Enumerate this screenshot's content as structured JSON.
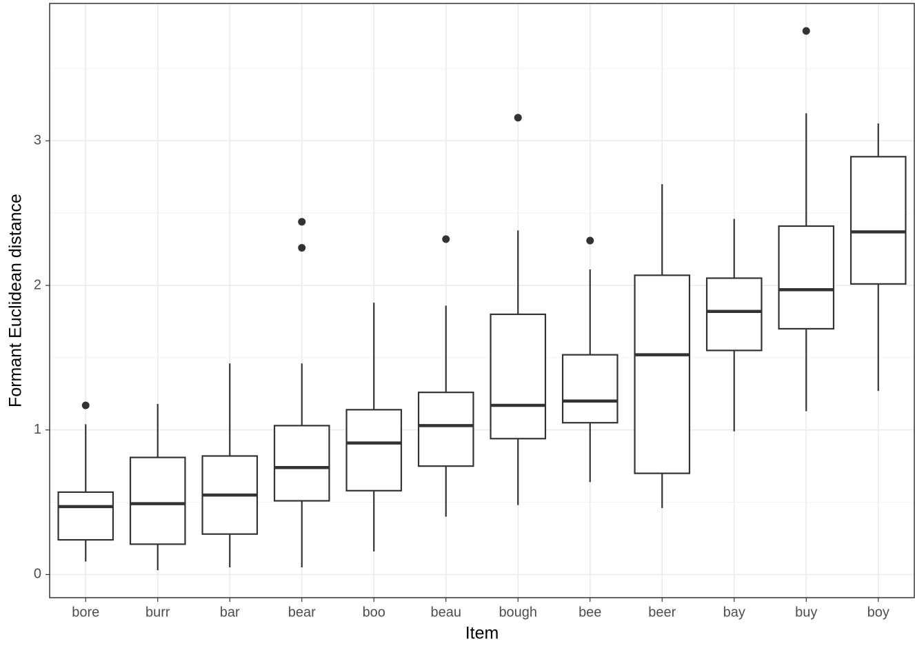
{
  "chart_data": {
    "type": "boxplot",
    "x_label": "Item",
    "y_label": "Formant Euclidean distance",
    "categories": [
      "bore",
      "burr",
      "bar",
      "bear",
      "boo",
      "beau",
      "bough",
      "bee",
      "beer",
      "bay",
      "buy",
      "boy"
    ],
    "boxes": [
      {
        "low": 0.09,
        "q1": 0.24,
        "median": 0.47,
        "q3": 0.57,
        "high": 1.04,
        "outliers": [
          1.17
        ]
      },
      {
        "low": 0.03,
        "q1": 0.21,
        "median": 0.49,
        "q3": 0.81,
        "high": 1.18,
        "outliers": []
      },
      {
        "low": 0.05,
        "q1": 0.28,
        "median": 0.55,
        "q3": 0.82,
        "high": 1.46,
        "outliers": []
      },
      {
        "low": 0.05,
        "q1": 0.51,
        "median": 0.74,
        "q3": 1.03,
        "high": 1.46,
        "outliers": [
          2.26,
          2.44
        ]
      },
      {
        "low": 0.16,
        "q1": 0.58,
        "median": 0.91,
        "q3": 1.14,
        "high": 1.88,
        "outliers": []
      },
      {
        "low": 0.4,
        "q1": 0.75,
        "median": 1.03,
        "q3": 1.26,
        "high": 1.86,
        "outliers": [
          2.32
        ]
      },
      {
        "low": 0.48,
        "q1": 0.94,
        "median": 1.17,
        "q3": 1.8,
        "high": 2.38,
        "outliers": [
          3.16
        ]
      },
      {
        "low": 0.64,
        "q1": 1.05,
        "median": 1.2,
        "q3": 1.52,
        "high": 2.11,
        "outliers": [
          2.31
        ]
      },
      {
        "low": 0.46,
        "q1": 0.7,
        "median": 1.52,
        "q3": 2.07,
        "high": 2.7,
        "outliers": []
      },
      {
        "low": 0.99,
        "q1": 1.55,
        "median": 1.82,
        "q3": 2.05,
        "high": 2.46,
        "outliers": []
      },
      {
        "low": 1.13,
        "q1": 1.7,
        "median": 1.97,
        "q3": 2.41,
        "high": 3.19,
        "outliers": [
          3.76
        ]
      },
      {
        "low": 1.27,
        "q1": 2.01,
        "median": 2.37,
        "q3": 2.89,
        "high": 3.12,
        "outliers": []
      }
    ],
    "color": "#333333",
    "ylim": [
      -0.16,
      3.95
    ],
    "yticks": [
      0,
      1,
      2,
      3
    ],
    "yminor": [
      0.5,
      1.5,
      2.5,
      3.5
    ],
    "grid": true
  }
}
